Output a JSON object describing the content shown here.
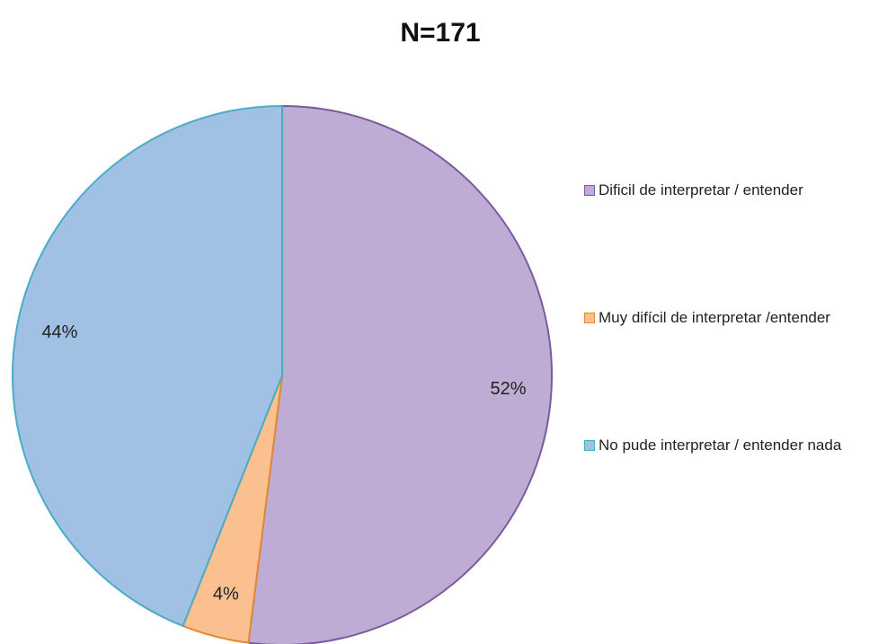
{
  "chart_data": {
    "type": "pie",
    "title": "N=171",
    "categories": [
      "Dificil de interpretar / entender",
      "Muy difícil de interpretar /entender",
      "No pude interpretar / entender nada"
    ],
    "values": [
      52,
      4,
      44
    ],
    "value_labels": [
      "52%",
      "4%",
      "44%"
    ],
    "colors": [
      "#bfacd4",
      "#fac090",
      "#a0c0e4"
    ],
    "edge_colors": [
      "#7a5c9e",
      "#e48a2e",
      "#4bacc6"
    ],
    "legend": "right"
  }
}
